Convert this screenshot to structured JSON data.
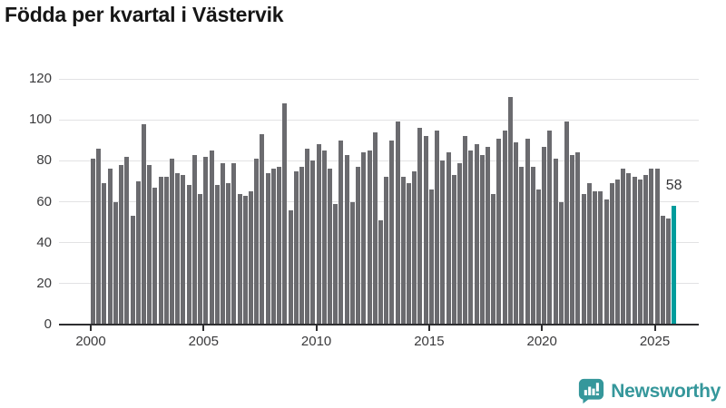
{
  "title": "Födda per kvartal i Västervik",
  "annotation": {
    "label": "58"
  },
  "branding": {
    "name": "Newsworthy",
    "icon": "newsworthy-bubble-chart-icon"
  },
  "colors": {
    "bar": "#6b6b6f",
    "highlight": "#009c9c",
    "grid": "#e2e2e4",
    "axis": "#2e2e30",
    "tick_label": "#3a3a3c",
    "title": "#161616",
    "brand": "#35979b"
  },
  "chart_data": {
    "type": "bar",
    "title": "Födda per kvartal i Västervik",
    "x_unit": "quarter",
    "x_start_year": 2000,
    "x_end_year": 2025,
    "values": [
      81,
      86,
      69,
      76,
      60,
      78,
      82,
      53,
      70,
      98,
      78,
      67,
      72,
      72,
      81,
      74,
      73,
      68,
      83,
      64,
      82,
      85,
      68,
      79,
      69,
      79,
      64,
      63,
      65,
      81,
      93,
      74,
      76,
      77,
      108,
      56,
      75,
      77,
      86,
      80,
      88,
      85,
      76,
      59,
      90,
      83,
      60,
      77,
      84,
      85,
      94,
      51,
      72,
      90,
      99,
      72,
      69,
      75,
      96,
      92,
      66,
      95,
      80,
      84,
      73,
      79,
      92,
      85,
      88,
      83,
      87,
      64,
      91,
      95,
      111,
      89,
      77,
      91,
      77,
      66,
      87,
      95,
      81,
      60,
      99,
      83,
      84,
      64,
      69,
      65,
      65,
      61,
      69,
      71,
      76,
      74,
      72,
      71,
      73,
      76,
      76,
      53,
      52,
      58
    ],
    "highlight_last": true,
    "last_value_label": "58",
    "y_ticks": [
      0,
      20,
      40,
      60,
      80,
      100,
      120
    ],
    "ylim": [
      0,
      120
    ],
    "x_tick_labels": [
      "2000",
      "2005",
      "2010",
      "2015",
      "2020",
      "2025"
    ],
    "x_tick_indices": [
      0,
      20,
      40,
      60,
      80,
      100
    ],
    "grid": "horizontal",
    "legend": "none"
  }
}
